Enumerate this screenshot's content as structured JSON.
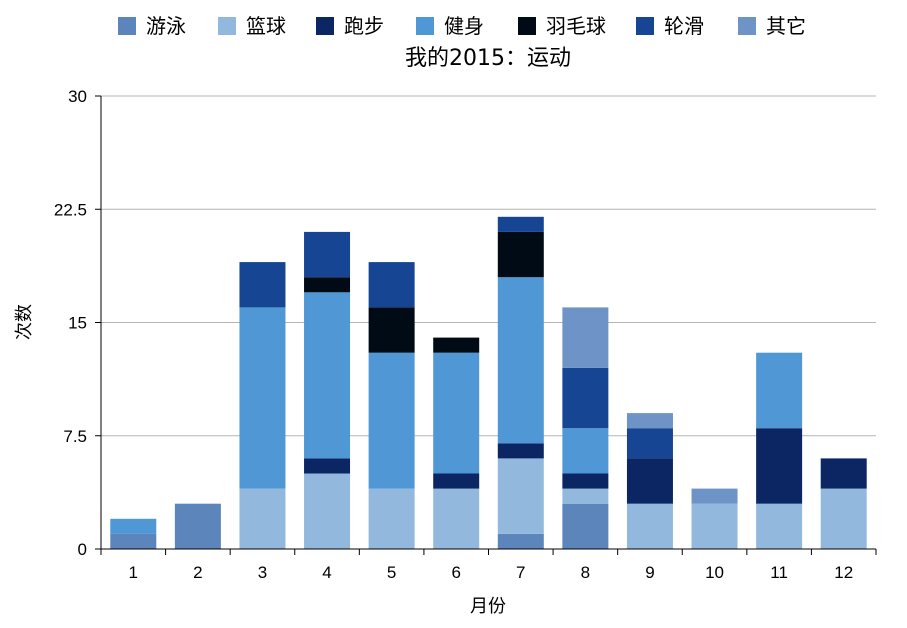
{
  "chart_data": {
    "type": "bar",
    "stacked": true,
    "title": "我的2015：运动",
    "xlabel": "月份",
    "ylabel": "次数",
    "ylim": [
      0,
      30
    ],
    "yticks": [
      "0",
      "7.5",
      "15",
      "22.5",
      "30"
    ],
    "ytick_values": [
      0,
      7.5,
      15,
      22.5,
      30
    ],
    "grid": true,
    "legend_position": "top",
    "categories": [
      "1",
      "2",
      "3",
      "4",
      "5",
      "6",
      "7",
      "8",
      "9",
      "10",
      "11",
      "12"
    ],
    "series": [
      {
        "name": "游泳",
        "color": "#5b85bb",
        "values": [
          1,
          3,
          0,
          0,
          0,
          0,
          1,
          3,
          0,
          0,
          0,
          0
        ]
      },
      {
        "name": "篮球",
        "color": "#92b9dd",
        "values": [
          0,
          0,
          4,
          5,
          4,
          4,
          5,
          1,
          3,
          3,
          3,
          4
        ]
      },
      {
        "name": "跑步",
        "color": "#0c2563",
        "values": [
          0,
          0,
          0,
          1,
          0,
          1,
          1,
          1,
          3,
          0,
          5,
          2
        ]
      },
      {
        "name": "健身",
        "color": "#4f97d5",
        "values": [
          1,
          0,
          12,
          11,
          9,
          8,
          11,
          3,
          0,
          0,
          5,
          0
        ]
      },
      {
        "name": "羽毛球",
        "color": "#000b16",
        "values": [
          0,
          0,
          0,
          1,
          3,
          1,
          3,
          0,
          0,
          0,
          0,
          0
        ]
      },
      {
        "name": "轮滑",
        "color": "#154593",
        "values": [
          0,
          0,
          3,
          3,
          3,
          0,
          1,
          4,
          2,
          0,
          0,
          0
        ]
      },
      {
        "name": "其它",
        "color": "#6d93c7",
        "values": [
          0,
          0,
          0,
          0,
          0,
          0,
          0,
          4,
          1,
          1,
          0,
          0
        ]
      }
    ]
  }
}
